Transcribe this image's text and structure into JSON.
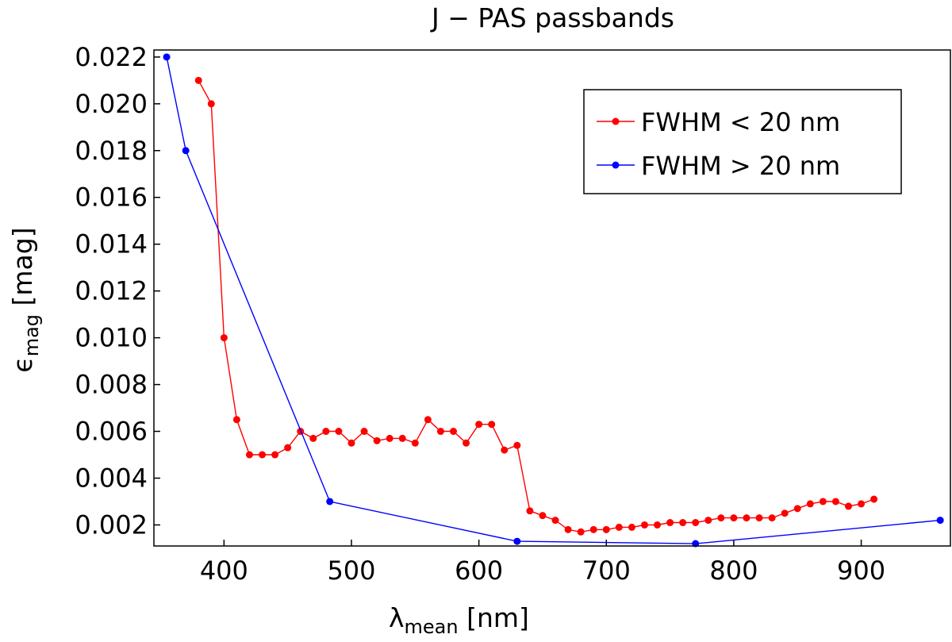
{
  "chart_data": {
    "type": "line",
    "title": "J − PAS passbands",
    "xlabel": {
      "symbol": "λ",
      "subscript": "mean",
      "unit": " [nm]"
    },
    "ylabel": {
      "symbol": "ϵ",
      "subscript": "mag",
      "unit": " [mag]"
    },
    "xlim": [
      345,
      970
    ],
    "ylim": [
      0.0011,
      0.0223
    ],
    "xticks": [
      400,
      500,
      600,
      700,
      800,
      900
    ],
    "xtick_labels": [
      "400",
      "500",
      "600",
      "700",
      "800",
      "900"
    ],
    "yticks": [
      0.002,
      0.004,
      0.006,
      0.008,
      0.01,
      0.012,
      0.014,
      0.016,
      0.018,
      0.02,
      0.022
    ],
    "ytick_labels": [
      "0.002",
      "0.004",
      "0.006",
      "0.008",
      "0.010",
      "0.012",
      "0.014",
      "0.016",
      "0.018",
      "0.020",
      "0.022"
    ],
    "grid": false,
    "legend_position": "top-right",
    "series": [
      {
        "name": "FWHM < 20 nm",
        "legend_label": "FWHM < 20 nm",
        "color": "#ff0000",
        "x": [
          380,
          390,
          400,
          410,
          420,
          430,
          440,
          450,
          460,
          470,
          480,
          490,
          500,
          510,
          520,
          530,
          540,
          550,
          560,
          570,
          580,
          590,
          600,
          610,
          620,
          630,
          640,
          650,
          660,
          670,
          680,
          690,
          700,
          710,
          720,
          730,
          740,
          750,
          760,
          770,
          780,
          790,
          800,
          810,
          820,
          830,
          840,
          850,
          860,
          870,
          880,
          890,
          900,
          910
        ],
        "y": [
          0.021,
          0.02,
          0.01,
          0.0065,
          0.005,
          0.005,
          0.005,
          0.0053,
          0.006,
          0.0057,
          0.006,
          0.006,
          0.0055,
          0.006,
          0.0056,
          0.0057,
          0.0057,
          0.0055,
          0.0065,
          0.006,
          0.006,
          0.0055,
          0.0063,
          0.0063,
          0.0052,
          0.0054,
          0.0026,
          0.0024,
          0.0022,
          0.0018,
          0.0017,
          0.0018,
          0.0018,
          0.0019,
          0.0019,
          0.002,
          0.002,
          0.0021,
          0.0021,
          0.0021,
          0.0022,
          0.0023,
          0.0023,
          0.0023,
          0.0023,
          0.0023,
          0.0025,
          0.0027,
          0.0029,
          0.003,
          0.003,
          0.0028,
          0.0029,
          0.0031
        ]
      },
      {
        "name": "FWHM > 20 nm",
        "legend_label": "FWHM > 20 nm",
        "color": "#0000ff",
        "x": [
          355,
          370,
          483,
          630,
          770,
          962
        ],
        "y": [
          0.022,
          0.018,
          0.003,
          0.0013,
          0.0012,
          0.0022
        ]
      }
    ]
  }
}
